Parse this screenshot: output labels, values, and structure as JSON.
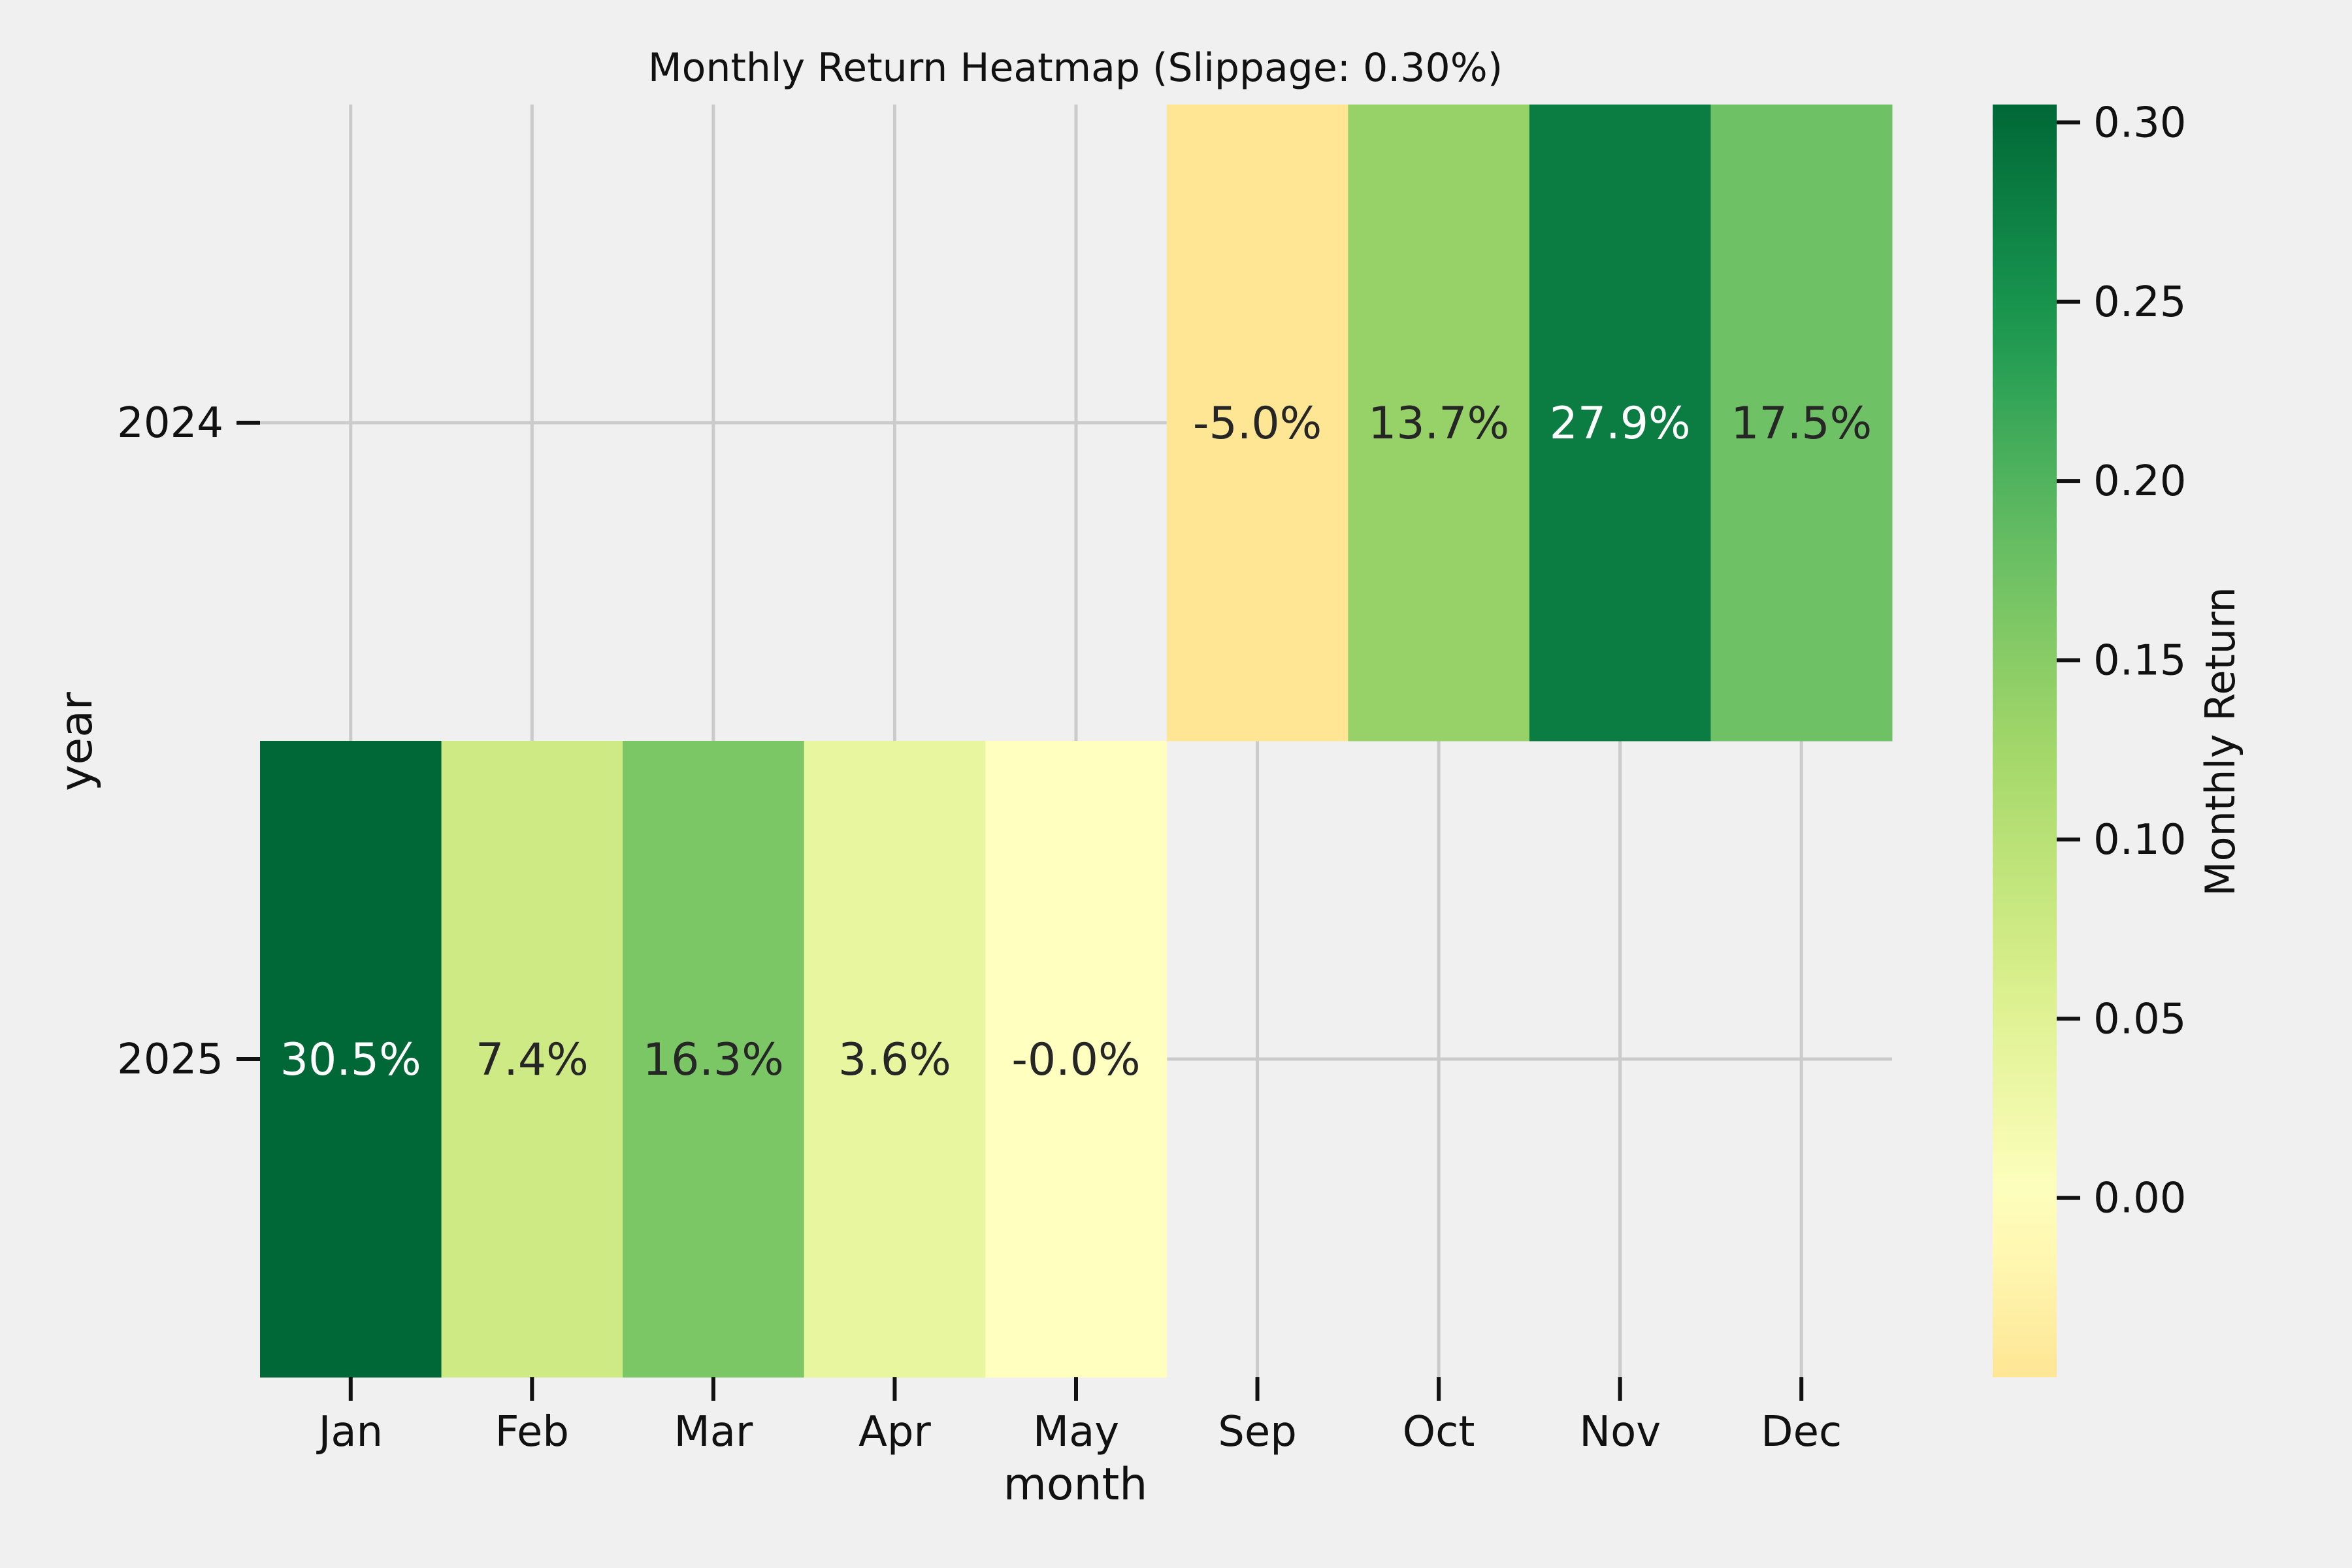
{
  "chart_data": {
    "type": "heatmap",
    "title": "Monthly Return Heatmap (Slippage: 0.30%)",
    "xlabel": "month",
    "ylabel": "year",
    "x_categories": [
      "Jan",
      "Feb",
      "Mar",
      "Apr",
      "May",
      "Sep",
      "Oct",
      "Nov",
      "Dec"
    ],
    "y_categories": [
      "2024",
      "2025"
    ],
    "cells": [
      {
        "year": "2024",
        "month": "Sep",
        "value": -0.05,
        "label": "-5.0%"
      },
      {
        "year": "2024",
        "month": "Oct",
        "value": 0.137,
        "label": "13.7%"
      },
      {
        "year": "2024",
        "month": "Nov",
        "value": 0.279,
        "label": "27.9%"
      },
      {
        "year": "2024",
        "month": "Dec",
        "value": 0.175,
        "label": "17.5%"
      },
      {
        "year": "2025",
        "month": "Jan",
        "value": 0.305,
        "label": "30.5%"
      },
      {
        "year": "2025",
        "month": "Feb",
        "value": 0.074,
        "label": "7.4%"
      },
      {
        "year": "2025",
        "month": "Mar",
        "value": 0.163,
        "label": "16.3%"
      },
      {
        "year": "2025",
        "month": "Apr",
        "value": 0.036,
        "label": "3.6%"
      },
      {
        "year": "2025",
        "month": "May",
        "value": -0.0001,
        "label": "-0.0%"
      }
    ],
    "grid": true,
    "colormap": "RdYlGn (centered at 0)",
    "colorbar": {
      "label": "Monthly Return",
      "range": [
        -0.05,
        0.305
      ],
      "ticks": [
        0.0,
        0.05,
        0.1,
        0.15,
        0.2,
        0.25,
        0.3
      ],
      "tick_labels": [
        "0.00",
        "0.05",
        "0.10",
        "0.15",
        "0.20",
        "0.25",
        "0.30"
      ]
    }
  }
}
